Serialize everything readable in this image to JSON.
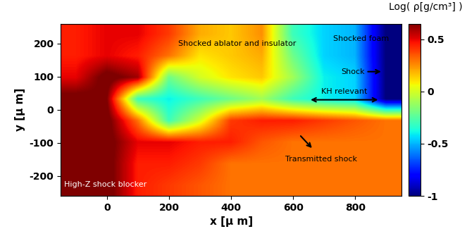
{
  "chart_data": {
    "type": "heatmap",
    "x_label": "x [μ m]",
    "y_label": "y [μ m]",
    "xlim": [
      -150,
      950
    ],
    "ylim": [
      -260,
      260
    ],
    "xticks": [
      0,
      200,
      400,
      600,
      800
    ],
    "yticks": [
      -200,
      -100,
      0,
      100,
      200
    ],
    "x_edges": [
      -150,
      -50,
      50,
      150,
      250,
      350,
      450,
      550,
      650,
      750,
      850,
      950
    ],
    "y_edges": [
      -260,
      -195,
      -130,
      -65,
      0,
      65,
      130,
      195,
      260
    ],
    "cells": [
      [
        0.7,
        0.7,
        0.45,
        0.4,
        0.35,
        0.3,
        0.3,
        0.3,
        0.3,
        0.3,
        0.3
      ],
      [
        0.7,
        0.7,
        0.45,
        0.45,
        0.4,
        0.3,
        0.3,
        0.3,
        0.3,
        0.3,
        0.3
      ],
      [
        0.7,
        0.7,
        0.5,
        0.5,
        0.45,
        0.45,
        0.35,
        0.3,
        0.3,
        0.3,
        0.3
      ],
      [
        0.7,
        0.7,
        0.3,
        -0.3,
        0.0,
        0.4,
        0.45,
        0.45,
        0.4,
        0.35,
        0.3
      ],
      [
        0.7,
        0.65,
        -0.3,
        -0.4,
        -0.3,
        -0.2,
        -0.1,
        -0.3,
        -0.4,
        -0.45,
        -1
      ],
      [
        0.5,
        0.7,
        0.6,
        -0.2,
        0.0,
        0.1,
        0.15,
        -0.1,
        -0.4,
        -0.45,
        -1
      ],
      [
        0.45,
        0.5,
        0.45,
        0.3,
        0.1,
        0.15,
        0.2,
        -0.2,
        -0.45,
        -0.5,
        -1
      ],
      [
        0.45,
        0.5,
        0.5,
        0.4,
        0.2,
        0.15,
        0.25,
        -0.3,
        -0.45,
        -0.5,
        -1
      ]
    ],
    "colorbar": {
      "label": "Log( ρ[g/cm³] )",
      "range": [
        -1,
        0.65
      ],
      "ticks": [
        -1,
        -0.5,
        0,
        0.5
      ]
    },
    "annotations": {
      "blocker": "High-Z shock blocker",
      "ablator": "Shocked ablator and insulator",
      "foam": "Shocked foam",
      "shock": "Shock",
      "kh": "KH relevant",
      "transmitted": "Transmitted shock"
    }
  }
}
